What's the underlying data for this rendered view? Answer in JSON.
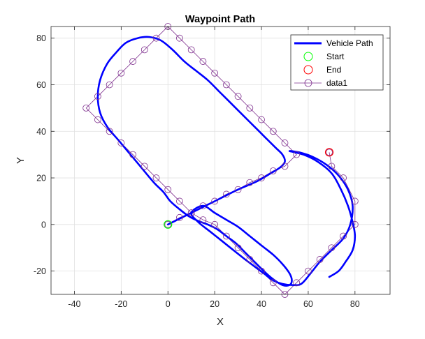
{
  "chart_data": {
    "type": "line",
    "title": "Waypoint Path",
    "xlabel": "X",
    "ylabel": "Y",
    "xlim": [
      -50,
      95
    ],
    "ylim": [
      -30,
      85
    ],
    "xticks": [
      -40,
      -20,
      0,
      20,
      40,
      60,
      80
    ],
    "yticks": [
      -20,
      0,
      20,
      40,
      60,
      80
    ],
    "xtick_labels": [
      "-40",
      "-20",
      "0",
      "20",
      "40",
      "60",
      "80"
    ],
    "ytick_labels": [
      "-20",
      "0",
      "20",
      "40",
      "60",
      "80"
    ],
    "grid": true,
    "legend_position": "top-right",
    "legend": [
      "Vehicle Path",
      "Start",
      "End",
      "data1"
    ],
    "series": [
      {
        "name": "Vehicle Path",
        "style": "thick-line",
        "color": "#0000ff",
        "x": [
          0,
          6,
          14,
          22,
          30,
          38,
          44,
          48,
          50,
          49,
          46,
          42,
          37,
          32,
          27,
          22,
          17,
          12,
          7,
          2,
          -3,
          -8,
          -13,
          -18,
          -22,
          -26,
          -29,
          -30,
          -29,
          -26,
          -21,
          -16,
          -11,
          -6,
          -2,
          1,
          5,
          9,
          13,
          17,
          21,
          25,
          29,
          33,
          37,
          41,
          45,
          49,
          52,
          53,
          52,
          49,
          45,
          40,
          35,
          30,
          25,
          20,
          15,
          10,
          13,
          18,
          23,
          28,
          33,
          37,
          41,
          45,
          49,
          53,
          57,
          61,
          65,
          70,
          75,
          78,
          79,
          77,
          73,
          68,
          62,
          56,
          52,
          58,
          64,
          70,
          74,
          77,
          79,
          80,
          79,
          76,
          73,
          69
        ],
        "y": [
          0,
          3,
          7,
          11,
          15,
          18.5,
          22,
          24.5,
          27,
          30,
          33,
          37,
          42,
          47,
          52,
          57,
          62,
          66,
          70,
          75,
          79,
          80.5,
          80,
          78,
          74,
          69,
          62,
          55,
          48,
          42,
          36,
          30,
          24,
          18,
          14,
          10,
          6.5,
          3.5,
          1.5,
          0,
          -2,
          -5,
          -8,
          -12,
          -16,
          -20,
          -23.5,
          -26,
          -26,
          -24,
          -21,
          -17,
          -13,
          -9,
          -5,
          -1,
          2,
          5,
          8,
          5,
          1,
          -3,
          -7,
          -11,
          -15,
          -18,
          -21,
          -24,
          -25.5,
          -26,
          -25.5,
          -21,
          -16,
          -11,
          -6,
          0,
          8,
          15,
          21,
          25.5,
          29,
          31,
          31.5,
          30,
          27,
          22,
          15,
          8,
          1,
          -5,
          -11,
          -16,
          -20,
          -22.5
        ]
      },
      {
        "name": "data1",
        "style": "thin-line-circle-markers",
        "color": "#7e2f8e",
        "x": [
          0,
          5,
          10,
          15,
          20,
          25,
          30,
          35,
          40,
          45,
          50,
          55,
          50,
          45,
          40,
          35,
          30,
          25,
          20,
          15,
          10,
          5,
          0,
          -5,
          -10,
          -15,
          -20,
          -25,
          -30,
          -35,
          -30,
          -25,
          -20,
          -15,
          -10,
          -5,
          0,
          5,
          10,
          15,
          20,
          25,
          30,
          35,
          40,
          45,
          50,
          55,
          60,
          65,
          70,
          75,
          80,
          80,
          75,
          70,
          69
        ],
        "y": [
          0,
          3,
          5,
          8,
          10,
          13,
          15,
          18,
          20,
          23,
          25,
          30,
          35,
          40,
          45,
          50,
          55,
          60,
          65,
          70,
          75,
          80,
          85,
          80,
          75,
          70,
          65,
          60,
          55,
          50,
          45,
          40,
          35,
          30,
          25,
          20,
          15,
          10,
          5,
          2,
          0,
          -5,
          -10,
          -15,
          -20,
          -25,
          -30,
          -25,
          -20,
          -15,
          -10,
          -5,
          0,
          10,
          20,
          25,
          31
        ]
      }
    ],
    "start": {
      "x": 0,
      "y": 0,
      "color": "#00ff00"
    },
    "end": {
      "x": 69,
      "y": 31,
      "color": "#ff0000"
    }
  }
}
